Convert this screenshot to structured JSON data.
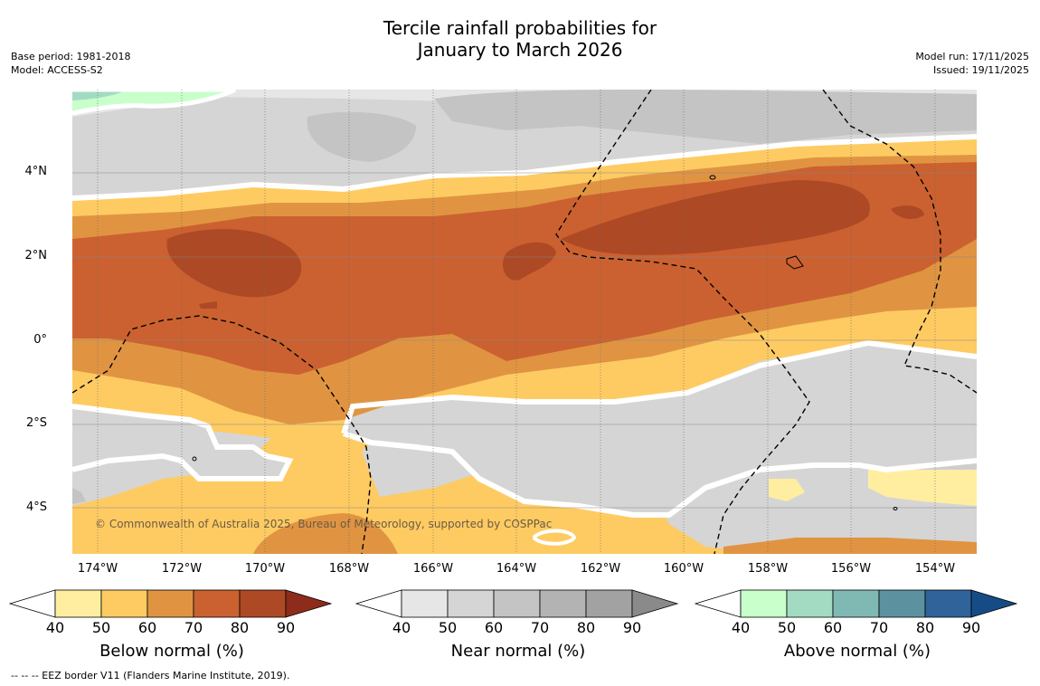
{
  "title": {
    "line1": "Tercile rainfall probabilities for",
    "line2": "January to March 2026"
  },
  "meta_left": {
    "base_period": "Base period: 1981-2018",
    "model": "Model: ACCESS-S2"
  },
  "meta_right": {
    "model_run": "Model run: 17/11/2025",
    "issued": "Issued: 19/11/2025"
  },
  "map": {
    "lat_labels": [
      "4°N",
      "2°N",
      "0°",
      "2°S",
      "4°S"
    ],
    "lon_labels": [
      "174°W",
      "172°W",
      "170°W",
      "168°W",
      "166°W",
      "164°W",
      "162°W",
      "160°W",
      "158°W",
      "156°W",
      "154°W"
    ],
    "copyright": "© Commonwealth of Australia 2025, Bureau of Meteorology, supported by COSPPac"
  },
  "colorbars": [
    {
      "title": "Below normal (%)",
      "ticks": [
        "40",
        "50",
        "60",
        "70",
        "80",
        "90"
      ],
      "colors": [
        "#ffffff",
        "#ffeea0",
        "#fecb62",
        "#e09442",
        "#cb6130",
        "#ae4926",
        "#8e2c1c"
      ]
    },
    {
      "title": "Near normal (%)",
      "ticks": [
        "40",
        "50",
        "60",
        "70",
        "80",
        "90"
      ],
      "colors": [
        "#ffffff",
        "#e6e6e6",
        "#d5d5d5",
        "#c4c4c4",
        "#b3b3b3",
        "#a2a2a2",
        "#8a8a8a"
      ]
    },
    {
      "title": "Above normal (%)",
      "ticks": [
        "40",
        "50",
        "60",
        "70",
        "80",
        "90"
      ],
      "colors": [
        "#ffffff",
        "#c8ffcb",
        "#a2dbc1",
        "#80b8b4",
        "#5c92a0",
        "#2f6399",
        "#164c86"
      ]
    }
  ],
  "eez_note": "--  --  -- EEZ border V11 (Flanders Marine Institute, 2019)."
}
